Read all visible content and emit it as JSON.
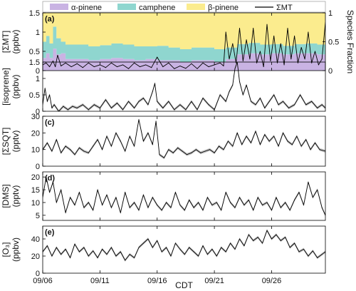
{
  "chart_data": {
    "type": "line",
    "xlabel": "CDT",
    "x_ticks": [
      "09/06",
      "09/11",
      "09/16",
      "09/21",
      "09/26"
    ],
    "x_tick_days": [
      6,
      11,
      16,
      21,
      26
    ],
    "xlim_days": [
      6,
      30.7
    ],
    "legend": {
      "position": "top",
      "entries": [
        {
          "label": "α-pinene",
          "kind": "area",
          "color": "#c9b3e3"
        },
        {
          "label": "camphene",
          "kind": "area",
          "color": "#8fd6cf"
        },
        {
          "label": "β-pinene",
          "kind": "area",
          "color": "#fbec8e"
        },
        {
          "label": "ΣMT",
          "kind": "line",
          "color": "#000000"
        }
      ]
    },
    "panels": [
      {
        "id": "(a)",
        "ylabel_lines": [
          "[ΣMT]",
          "(ppbv)"
        ],
        "ylim": [
          0,
          1.5
        ],
        "yticks": [
          0,
          0.5,
          1,
          1.5
        ],
        "y2label": "Species Fraction",
        "y2lim": [
          0,
          1
        ],
        "y2ticks": [
          0,
          0.5,
          1
        ],
        "line_color": "#000000",
        "fraction_series": [
          {
            "name": "α-pinene",
            "color": "#c9b3e3",
            "x": [
              6,
              6.3,
              6.6,
              6.9,
              7.2,
              7.6,
              8,
              9,
              10,
              11,
              12,
              13,
              14,
              15,
              16,
              17,
              18,
              19,
              20,
              21,
              22,
              22.5,
              23,
              24,
              25,
              26,
              27,
              28,
              29,
              30,
              30.7
            ],
            "values": [
              0.22,
              0.3,
              0.22,
              0.38,
              0.28,
              0.3,
              0.2,
              0.2,
              0.18,
              0.2,
              0.22,
              0.2,
              0.18,
              0.2,
              0.18,
              0.18,
              0.15,
              0.18,
              0.18,
              0.15,
              0.2,
              0.2,
              0.28,
              0.3,
              0.28,
              0.3,
              0.28,
              0.3,
              0.3,
              0.28,
              0.28
            ]
          },
          {
            "name": "camphene",
            "color": "#8fd6cf",
            "x": [
              6,
              6.3,
              6.6,
              6.9,
              7.2,
              7.6,
              8,
              9,
              10,
              11,
              12,
              13,
              14,
              15,
              16,
              17,
              18,
              19,
              20,
              21,
              22,
              22.5,
              23,
              24,
              25,
              26,
              27,
              28,
              29,
              30,
              30.7
            ],
            "values": [
              0.28,
              0.3,
              0.25,
              0.38,
              0.28,
              0.2,
              0.25,
              0.25,
              0.24,
              0.24,
              0.25,
              0.25,
              0.24,
              0.22,
              0.25,
              0.22,
              0.22,
              0.22,
              0.22,
              0.22,
              0.2,
              0.2,
              0.18,
              0.18,
              0.17,
              0.16,
              0.15,
              0.16,
              0.17,
              0.17,
              0.18
            ]
          },
          {
            "name": "β-pinene",
            "color": "#fbec8e",
            "x": [
              6,
              6.3,
              6.6,
              6.9,
              7.2,
              7.6,
              8,
              9,
              10,
              11,
              12,
              13,
              14,
              15,
              16,
              17,
              18,
              19,
              20,
              21,
              22,
              22.5,
              23,
              24,
              25,
              26,
              27,
              28,
              29,
              30,
              30.7
            ],
            "values": [
              0.5,
              0.4,
              0.53,
              0.24,
              0.44,
              0.5,
              0.55,
              0.55,
              0.58,
              0.56,
              0.53,
              0.55,
              0.58,
              0.58,
              0.57,
              0.6,
              0.63,
              0.6,
              0.6,
              0.63,
              0.6,
              0.6,
              0.54,
              0.52,
              0.55,
              0.54,
              0.57,
              0.54,
              0.53,
              0.55,
              0.54
            ]
          }
        ],
        "x": [
          6,
          6.3,
          6.6,
          6.9,
          7.1,
          7.3,
          7.6,
          8,
          8.5,
          9,
          9.5,
          10,
          10.5,
          11,
          11.5,
          12,
          12.5,
          13,
          13.5,
          14,
          14.5,
          15,
          15.5,
          16,
          16.5,
          17,
          17.5,
          18,
          18.5,
          19,
          19.5,
          20,
          20.5,
          21,
          21.5,
          21.8,
          22,
          22.3,
          22.6,
          22.9,
          23.2,
          23.5,
          23.8,
          24.1,
          24.4,
          24.7,
          25,
          25.3,
          25.6,
          25.9,
          26.2,
          26.5,
          26.8,
          27.1,
          27.4,
          27.7,
          28,
          28.3,
          28.6,
          28.9,
          29.2,
          29.5,
          29.8,
          30.1,
          30.4,
          30.7
        ],
        "values": [
          0.15,
          0.2,
          0.1,
          0.25,
          0.1,
          0.4,
          0.12,
          0.2,
          0.1,
          0.18,
          0.08,
          0.2,
          0.1,
          0.15,
          0.08,
          0.2,
          0.1,
          0.15,
          0.05,
          0.2,
          0.1,
          0.15,
          0.08,
          0.35,
          0.1,
          0.2,
          0.05,
          0.12,
          0.06,
          0.18,
          0.05,
          0.2,
          0.1,
          0.15,
          0.2,
          0.12,
          1.0,
          0.3,
          0.7,
          0.2,
          1.1,
          0.25,
          0.8,
          0.3,
          1.1,
          0.2,
          0.5,
          0.1,
          1.2,
          0.25,
          0.9,
          0.2,
          0.7,
          0.15,
          1.1,
          0.3,
          0.9,
          0.2,
          0.6,
          0.3,
          1.0,
          0.2,
          0.5,
          0.15,
          0.3,
          1.25
        ]
      },
      {
        "id": "",
        "ylabel_lines": [
          "[isoprene]",
          "(ppbv)"
        ],
        "ylim": [
          0,
          1.5
        ],
        "yticks": [
          0,
          0.5,
          1,
          1.5
        ],
        "line_color": "#000000",
        "x": [
          6,
          6.2,
          6.4,
          6.6,
          6.8,
          7,
          7.4,
          7.8,
          8.2,
          8.6,
          9,
          9.5,
          10,
          10.5,
          11,
          11.5,
          12,
          12.5,
          13,
          13.5,
          14,
          14.4,
          14.8,
          15.2,
          15.6,
          15.8,
          16,
          16.5,
          17,
          17.5,
          18,
          18.5,
          19,
          19.5,
          20,
          20.5,
          21,
          21.5,
          22,
          22.3,
          22.6,
          22.8,
          23,
          23.2,
          23.5,
          23.8,
          24.2,
          24.6,
          25,
          25.4,
          25.8,
          26.2,
          26.6,
          27,
          27.5,
          28,
          28.5,
          29,
          29.5,
          30,
          30.4,
          30.7
        ],
        "values": [
          0.2,
          0.7,
          0.3,
          0.5,
          0.1,
          0.2,
          0.0,
          0.15,
          0.05,
          0.15,
          0.1,
          0.2,
          0.05,
          0.2,
          0.1,
          0.35,
          0.1,
          0.25,
          0.05,
          0.3,
          0.1,
          0.3,
          0.4,
          0.2,
          0.6,
          0.85,
          0.3,
          0.1,
          0.3,
          0.05,
          0.2,
          0.05,
          0.3,
          0.05,
          0.4,
          0.2,
          0.05,
          0.5,
          0.3,
          0.6,
          0.8,
          1.3,
          1.5,
          0.9,
          0.5,
          0.8,
          0.3,
          0.2,
          0.4,
          0.1,
          0.3,
          0.5,
          0.2,
          0.3,
          0.1,
          0.2,
          0.5,
          0.2,
          0.3,
          0.1,
          0.2,
          0.1
        ]
      },
      {
        "id": "(c)",
        "ylabel_lines": [
          "[ΣSQT]",
          "(pptv)"
        ],
        "ylim": [
          0,
          30
        ],
        "yticks": [
          0,
          10,
          20,
          30
        ],
        "line_color": "#000000",
        "x": [
          6,
          6.4,
          6.8,
          7.2,
          7.6,
          8,
          8.4,
          8.8,
          9.2,
          9.6,
          10,
          10.4,
          10.8,
          11.2,
          11.6,
          12,
          12.4,
          12.8,
          13.2,
          13.6,
          14,
          14.4,
          14.8,
          15.2,
          15.6,
          15.9,
          16.2,
          16.6,
          17,
          17.4,
          17.8,
          18.2,
          18.6,
          19,
          19.4,
          19.8,
          20.2,
          20.6,
          21,
          21.4,
          21.8,
          22.2,
          22.6,
          23,
          23.4,
          23.8,
          24.2,
          24.6,
          25,
          25.4,
          25.8,
          26.2,
          26.6,
          27,
          27.4,
          27.8,
          28.2,
          28.6,
          29,
          29.4,
          29.8,
          30.2,
          30.7
        ],
        "values": [
          10,
          14,
          9,
          16,
          8,
          12,
          10,
          7,
          11,
          9,
          8,
          12,
          16,
          10,
          18,
          12,
          20,
          15,
          9,
          18,
          12,
          28,
          15,
          20,
          13,
          27,
          7,
          5,
          10,
          8,
          11,
          9,
          7,
          8,
          10,
          8,
          9,
          10,
          8,
          12,
          10,
          15,
          12,
          20,
          13,
          18,
          14,
          21,
          13,
          19,
          15,
          18,
          12,
          20,
          15,
          13,
          18,
          12,
          16,
          10,
          14,
          10,
          9
        ]
      },
      {
        "id": "(d)",
        "ylabel_lines": [
          "[DMS]",
          "(pptv)"
        ],
        "ylim": [
          3,
          22
        ],
        "yticks": [
          5,
          10,
          15,
          20
        ],
        "line_color": "#000000",
        "x": [
          6,
          6.3,
          6.6,
          6.9,
          7.2,
          7.6,
          8,
          8.4,
          8.8,
          9.2,
          9.6,
          10,
          10.4,
          10.8,
          11.2,
          11.6,
          12,
          12.4,
          12.8,
          13.2,
          13.6,
          14,
          14.4,
          14.8,
          15.2,
          15.6,
          16,
          16.4,
          16.8,
          17.2,
          17.6,
          18,
          18.4,
          18.8,
          19.2,
          19.6,
          20,
          20.4,
          20.8,
          21.2,
          21.6,
          22,
          22.4,
          22.8,
          23.2,
          23.6,
          24,
          24.4,
          24.8,
          25.2,
          25.6,
          26,
          26.4,
          26.8,
          27.2,
          27.6,
          28,
          28.4,
          28.8,
          29.2,
          29.6,
          30,
          30.4,
          30.7
        ],
        "values": [
          12,
          20,
          14,
          18,
          10,
          15,
          6,
          12,
          9,
          14,
          8,
          10,
          7,
          15,
          9,
          13,
          8,
          12,
          6,
          14,
          8,
          10,
          7,
          13,
          8,
          12,
          9,
          7,
          10,
          8,
          14,
          9,
          7,
          11,
          8,
          10,
          7,
          12,
          9,
          10,
          7,
          14,
          10,
          8,
          12,
          9,
          11,
          7,
          12,
          9,
          10,
          7,
          12,
          8,
          10,
          7,
          11,
          14,
          9,
          18,
          12,
          15,
          8,
          5
        ]
      },
      {
        "id": "(e)",
        "ylabel_lines": [
          "[O₃]",
          "(ppbv)"
        ],
        "ylim": [
          0,
          55
        ],
        "yticks": [
          0,
          20,
          40
        ],
        "line_color": "#000000",
        "x": [
          6,
          6.4,
          6.8,
          7.2,
          7.6,
          8,
          8.4,
          8.8,
          9.2,
          9.6,
          10,
          10.4,
          10.8,
          11.2,
          11.6,
          12,
          12.4,
          12.8,
          13.2,
          13.6,
          14,
          14.4,
          14.8,
          15.2,
          15.6,
          16,
          16.4,
          16.8,
          17.2,
          17.6,
          18,
          18.4,
          18.8,
          19.2,
          19.6,
          20,
          20.4,
          20.8,
          21.2,
          21.6,
          22,
          22.4,
          22.8,
          23.2,
          23.6,
          24,
          24.4,
          24.8,
          25.2,
          25.6,
          26,
          26.4,
          26.8,
          27.2,
          27.6,
          28,
          28.4,
          28.8,
          29.2,
          29.6,
          30,
          30.4,
          30.7
        ],
        "values": [
          25,
          32,
          20,
          30,
          22,
          28,
          18,
          34,
          25,
          30,
          20,
          26,
          18,
          28,
          22,
          30,
          20,
          25,
          15,
          22,
          18,
          30,
          35,
          40,
          30,
          38,
          25,
          30,
          20,
          35,
          28,
          22,
          30,
          25,
          20,
          32,
          22,
          28,
          20,
          30,
          25,
          35,
          28,
          40,
          32,
          45,
          38,
          42,
          35,
          50,
          40,
          45,
          38,
          42,
          30,
          35,
          25,
          28,
          20,
          26,
          18,
          22,
          25
        ]
      }
    ]
  }
}
